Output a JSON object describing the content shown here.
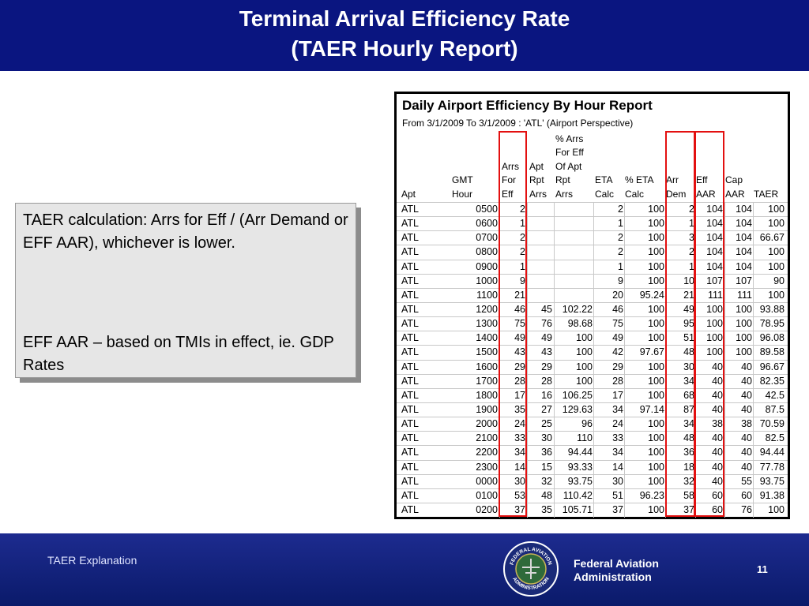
{
  "header": {
    "title_line1": "Terminal Arrival Efficiency Rate",
    "title_line2": "(TAER Hourly Report)",
    "background": "#0a1580"
  },
  "note": {
    "para1": "TAER calculation:  Arrs for Eff / (Arr Demand or EFF AAR), whichever is lower.",
    "para2": "EFF AAR – based on TMIs in effect, ie. GDP Rates"
  },
  "report": {
    "title": "Daily Airport Efficiency By Hour Report",
    "subtitle": "From 3/1/2009 To 3/1/2009 :  'ATL' (Airport Perspective)",
    "highlight_color": "#e31010",
    "columns": [
      {
        "key": "apt",
        "lines": [
          "Apt"
        ]
      },
      {
        "key": "gmt",
        "lines": [
          "GMT",
          "Hour"
        ]
      },
      {
        "key": "arrs_eff",
        "lines": [
          "Arrs",
          "For",
          "Eff"
        ]
      },
      {
        "key": "apt_rpt",
        "lines": [
          "Apt",
          "Rpt",
          "Arrs"
        ]
      },
      {
        "key": "pct_arrs",
        "lines": [
          "% Arrs",
          "For Eff",
          "Of Apt",
          "Rpt",
          "Arrs"
        ]
      },
      {
        "key": "eta",
        "lines": [
          "ETA",
          "Calc"
        ]
      },
      {
        "key": "pct_eta",
        "lines": [
          "% ETA",
          "Calc"
        ]
      },
      {
        "key": "arr_dem",
        "lines": [
          "Arr",
          "Dem"
        ]
      },
      {
        "key": "eff_aar",
        "lines": [
          "Eff",
          "AAR"
        ]
      },
      {
        "key": "cap_aar",
        "lines": [
          "Cap",
          "AAR"
        ]
      },
      {
        "key": "taer",
        "lines": [
          "TAER"
        ]
      }
    ],
    "rows": [
      [
        "ATL",
        "0500",
        "2",
        "",
        "",
        "2",
        "100",
        "2",
        "104",
        "104",
        "100"
      ],
      [
        "ATL",
        "0600",
        "1",
        "",
        "",
        "1",
        "100",
        "1",
        "104",
        "104",
        "100"
      ],
      [
        "ATL",
        "0700",
        "2",
        "",
        "",
        "2",
        "100",
        "3",
        "104",
        "104",
        "66.67"
      ],
      [
        "ATL",
        "0800",
        "2",
        "",
        "",
        "2",
        "100",
        "2",
        "104",
        "104",
        "100"
      ],
      [
        "ATL",
        "0900",
        "1",
        "",
        "",
        "1",
        "100",
        "1",
        "104",
        "104",
        "100"
      ],
      [
        "ATL",
        "1000",
        "9",
        "",
        "",
        "9",
        "100",
        "10",
        "107",
        "107",
        "90"
      ],
      [
        "ATL",
        "1100",
        "21",
        "",
        "",
        "20",
        "95.24",
        "21",
        "111",
        "111",
        "100"
      ],
      [
        "ATL",
        "1200",
        "46",
        "45",
        "102.22",
        "46",
        "100",
        "49",
        "100",
        "100",
        "93.88"
      ],
      [
        "ATL",
        "1300",
        "75",
        "76",
        "98.68",
        "75",
        "100",
        "95",
        "100",
        "100",
        "78.95"
      ],
      [
        "ATL",
        "1400",
        "49",
        "49",
        "100",
        "49",
        "100",
        "51",
        "100",
        "100",
        "96.08"
      ],
      [
        "ATL",
        "1500",
        "43",
        "43",
        "100",
        "42",
        "97.67",
        "48",
        "100",
        "100",
        "89.58"
      ],
      [
        "ATL",
        "1600",
        "29",
        "29",
        "100",
        "29",
        "100",
        "30",
        "40",
        "40",
        "96.67"
      ],
      [
        "ATL",
        "1700",
        "28",
        "28",
        "100",
        "28",
        "100",
        "34",
        "40",
        "40",
        "82.35"
      ],
      [
        "ATL",
        "1800",
        "17",
        "16",
        "106.25",
        "17",
        "100",
        "68",
        "40",
        "40",
        "42.5"
      ],
      [
        "ATL",
        "1900",
        "35",
        "27",
        "129.63",
        "34",
        "97.14",
        "87",
        "40",
        "40",
        "87.5"
      ],
      [
        "ATL",
        "2000",
        "24",
        "25",
        "96",
        "24",
        "100",
        "34",
        "38",
        "38",
        "70.59"
      ],
      [
        "ATL",
        "2100",
        "33",
        "30",
        "110",
        "33",
        "100",
        "48",
        "40",
        "40",
        "82.5"
      ],
      [
        "ATL",
        "2200",
        "34",
        "36",
        "94.44",
        "34",
        "100",
        "36",
        "40",
        "40",
        "94.44"
      ],
      [
        "ATL",
        "2300",
        "14",
        "15",
        "93.33",
        "14",
        "100",
        "18",
        "40",
        "40",
        "77.78"
      ],
      [
        "ATL",
        "0000",
        "30",
        "32",
        "93.75",
        "30",
        "100",
        "32",
        "40",
        "55",
        "93.75"
      ],
      [
        "ATL",
        "0100",
        "53",
        "48",
        "110.42",
        "51",
        "96.23",
        "58",
        "60",
        "60",
        "91.38"
      ],
      [
        "ATL",
        "0200",
        "37",
        "35",
        "105.71",
        "37",
        "100",
        "37",
        "60",
        "76",
        "100"
      ]
    ]
  },
  "footer": {
    "left_text": "TAER Explanation",
    "agency_line1": "Federal Aviation",
    "agency_line2": "Administration",
    "page_number": "11",
    "seal_icon": "faa-seal-icon",
    "seal_text_top": "FEDERAL AVIATION",
    "seal_text_bottom": "ADMINISTRATION"
  }
}
